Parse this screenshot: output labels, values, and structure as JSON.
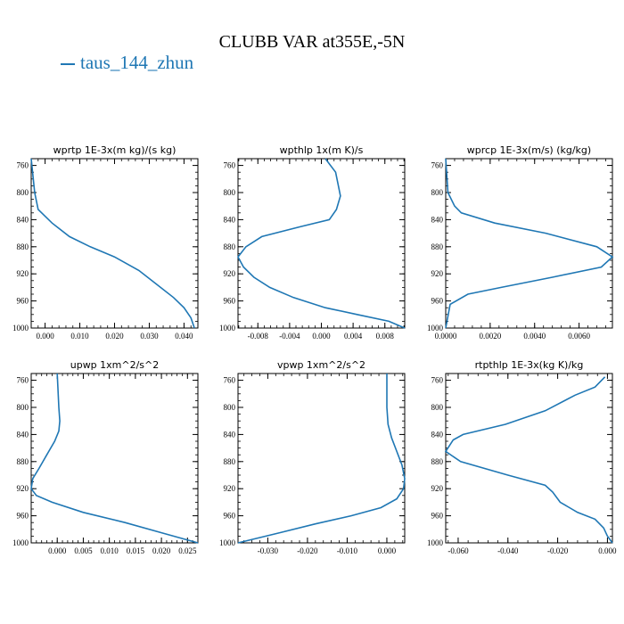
{
  "title": "CLUBB VAR at355E,-5N",
  "legend": {
    "label": "taus_144_zhun",
    "color": "#1f77b4"
  },
  "line_color": "#1f77b4",
  "chart_data": [
    {
      "type": "line",
      "title": "wprtp   1E-3x(m kg)/(s kg)",
      "xlim": [
        -0.004,
        0.044
      ],
      "ylim": [
        1000,
        750
      ],
      "xticks": [
        0.0,
        0.01,
        0.02,
        0.03,
        0.04
      ],
      "xtick_labels": [
        "0.000",
        "0.010",
        "0.020",
        "0.030",
        "0.040"
      ],
      "yticks": [
        760,
        800,
        840,
        880,
        920,
        960,
        1000
      ],
      "x": [
        -0.004,
        -0.003,
        -0.002,
        0.002,
        0.007,
        0.013,
        0.02,
        0.027,
        0.032,
        0.037,
        0.04,
        0.042,
        0.043
      ],
      "y": [
        750,
        800,
        825,
        845,
        865,
        880,
        895,
        915,
        935,
        955,
        970,
        985,
        1000
      ]
    },
    {
      "type": "line",
      "title": "wpthlp   1x(m K)/s",
      "xlim": [
        -0.0105,
        0.0105
      ],
      "ylim": [
        1000,
        750
      ],
      "xticks": [
        -0.008,
        -0.004,
        0.0,
        0.004,
        0.008
      ],
      "xtick_labels": [
        "-0.008",
        "-0.004",
        "0.000",
        "0.004",
        "0.008"
      ],
      "yticks": [
        760,
        800,
        840,
        880,
        920,
        960,
        1000
      ],
      "x": [
        0.0005,
        0.0018,
        0.0024,
        0.0019,
        0.001,
        -0.0025,
        -0.0075,
        -0.0095,
        -0.0105,
        -0.0098,
        -0.0085,
        -0.0065,
        -0.0035,
        0.0005,
        0.0045,
        0.0085,
        0.0105
      ],
      "y": [
        750,
        770,
        805,
        825,
        840,
        850,
        865,
        880,
        895,
        910,
        925,
        940,
        955,
        970,
        980,
        990,
        1000
      ]
    },
    {
      "type": "line",
      "title": "wprcp   1E-3x(m/s) (kg/kg)",
      "xlim": [
        0.0,
        0.0075
      ],
      "ylim": [
        1000,
        750
      ],
      "xticks": [
        0.0,
        0.002,
        0.004,
        0.006
      ],
      "xtick_labels": [
        "0.0000",
        "0.0020",
        "0.0040",
        "0.0060"
      ],
      "yticks": [
        760,
        800,
        840,
        880,
        920,
        960,
        1000
      ],
      "x": [
        0.0,
        0.0001,
        0.0004,
        0.0007,
        0.0022,
        0.0045,
        0.0068,
        0.0075,
        0.007,
        0.0048,
        0.0025,
        0.001,
        0.0002,
        0.0
      ],
      "y": [
        750,
        800,
        820,
        830,
        845,
        860,
        880,
        895,
        910,
        925,
        940,
        950,
        965,
        1000
      ]
    },
    {
      "type": "line",
      "title": "upwp   1xm^2/s^2",
      "xlim": [
        -0.005,
        0.027
      ],
      "ylim": [
        1000,
        750
      ],
      "xticks": [
        0.0,
        0.005,
        0.01,
        0.015,
        0.02,
        0.025
      ],
      "xtick_labels": [
        "0.000",
        "0.005",
        "0.010",
        "0.015",
        "0.020",
        "0.025"
      ],
      "yticks": [
        760,
        800,
        840,
        880,
        920,
        960,
        1000
      ],
      "x": [
        0.0,
        0.0003,
        0.0005,
        0.0003,
        -0.0005,
        -0.002,
        -0.0035,
        -0.0047,
        -0.005,
        -0.004,
        -0.001,
        0.005,
        0.013,
        0.02,
        0.027
      ],
      "y": [
        750,
        800,
        820,
        835,
        850,
        870,
        890,
        905,
        920,
        930,
        940,
        955,
        970,
        985,
        1000
      ]
    },
    {
      "type": "line",
      "title": "vpwp   1xm^2/s^2",
      "xlim": [
        -0.0375,
        0.0045
      ],
      "ylim": [
        1000,
        750
      ],
      "xticks": [
        -0.03,
        -0.02,
        -0.01,
        0.0
      ],
      "xtick_labels": [
        "-0.030",
        "-0.020",
        "-0.010",
        "0.000"
      ],
      "yticks": [
        760,
        800,
        840,
        880,
        920,
        960,
        1000
      ],
      "x": [
        0.0,
        0.0,
        0.0003,
        0.0012,
        0.0025,
        0.0038,
        0.0045,
        0.0042,
        0.0025,
        -0.0015,
        -0.009,
        -0.018,
        -0.027,
        -0.0375
      ],
      "y": [
        750,
        800,
        825,
        845,
        865,
        885,
        905,
        920,
        935,
        948,
        960,
        972,
        985,
        1000
      ]
    },
    {
      "type": "line",
      "title": "rtpthlp   1E-3x(kg K)/kg",
      "xlim": [
        -0.065,
        0.002
      ],
      "ylim": [
        1000,
        750
      ],
      "xticks": [
        -0.06,
        -0.04,
        -0.02,
        0.0
      ],
      "xtick_labels": [
        "-0.060",
        "-0.040",
        "-0.020",
        "0.000"
      ],
      "yticks": [
        760,
        800,
        840,
        880,
        920,
        960,
        1000
      ],
      "x": [
        -0.001,
        -0.005,
        -0.013,
        -0.025,
        -0.041,
        -0.058,
        -0.062,
        -0.065,
        -0.059,
        -0.04,
        -0.025,
        -0.022,
        -0.019,
        -0.012,
        -0.005,
        -0.0015,
        0.0,
        0.002
      ],
      "y": [
        755,
        770,
        782,
        805,
        825,
        840,
        848,
        865,
        880,
        900,
        915,
        925,
        940,
        955,
        965,
        978,
        990,
        1000
      ]
    }
  ]
}
